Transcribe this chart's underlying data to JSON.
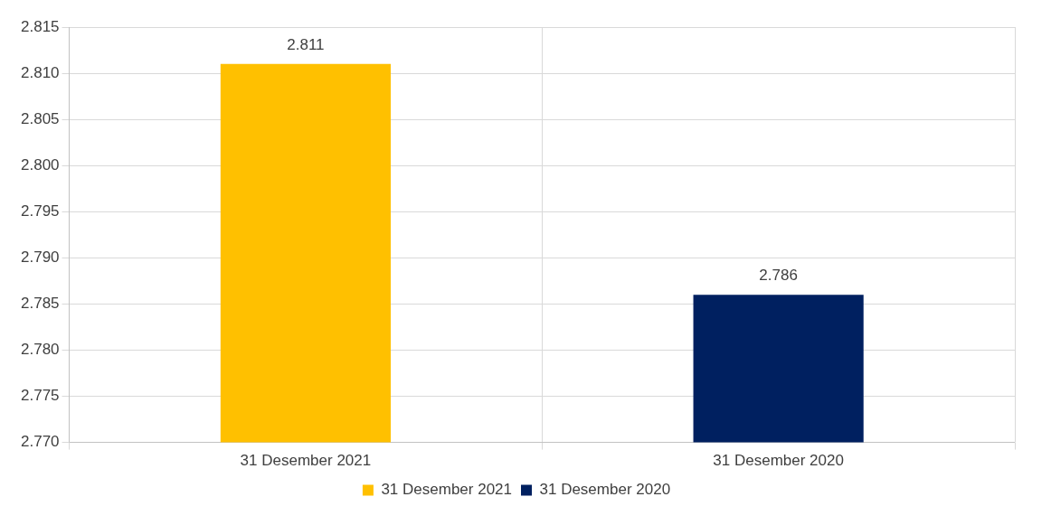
{
  "chart_data": {
    "type": "bar",
    "categories": [
      "31 Desember 2021",
      "31 Desember 2020"
    ],
    "series": [
      {
        "name": "31 Desember 2021",
        "color": "#ffc000",
        "values": [
          2.811,
          null
        ]
      },
      {
        "name": "31 Desember 2020",
        "color": "#002060",
        "values": [
          null,
          2.786
        ]
      }
    ],
    "ylim": [
      2.77,
      2.815
    ],
    "yticks": [
      {
        "value": 2.77,
        "label": "2.770"
      },
      {
        "value": 2.775,
        "label": "2.775"
      },
      {
        "value": 2.78,
        "label": "2.780"
      },
      {
        "value": 2.785,
        "label": "2.785"
      },
      {
        "value": 2.79,
        "label": "2.790"
      },
      {
        "value": 2.795,
        "label": "2.795"
      },
      {
        "value": 2.8,
        "label": "2.800"
      },
      {
        "value": 2.805,
        "label": "2.805"
      },
      {
        "value": 2.81,
        "label": "2.810"
      },
      {
        "value": 2.815,
        "label": "2.815"
      }
    ],
    "grid": true,
    "legend": "bottom",
    "data_labels": true
  }
}
